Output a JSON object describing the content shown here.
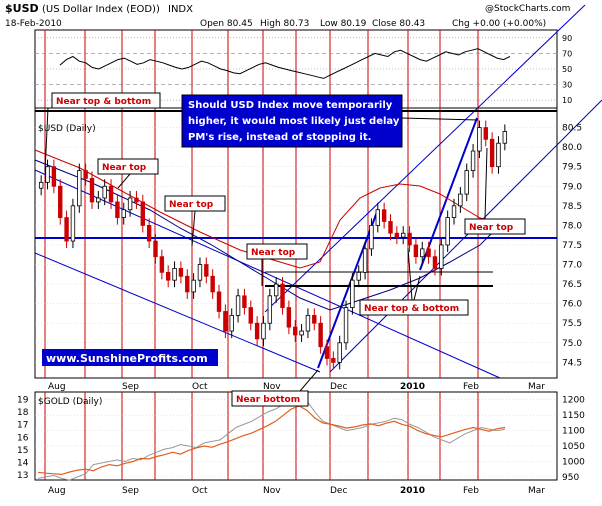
{
  "header": {
    "symbol": "$USD",
    "name": "(US Dollar Index (EOD))",
    "exchange": "INDX",
    "date": "18-Feb-2010",
    "open": "Open 80.45",
    "high": "High 80.73",
    "low": "Low 80.19",
    "close": "Close 80.43",
    "change": "Chg +0.00 (+0.00%)",
    "watermark": "@StockCharts.com"
  },
  "colors": {
    "price_up": "#000000",
    "price_down": "#cc0000",
    "ma_short": "#000080",
    "ma_long": "#cc0000",
    "channel": "#0000cc",
    "horizontal_support": "#0000cc",
    "gold_line": "#999999",
    "usd_overlay": "#e06020",
    "annotation_bg": "#ffffff",
    "annotation_text": "#cc0000",
    "callout_text": "#ffffff",
    "callout_bg": "#0000cc",
    "website_text": "#ffffff",
    "website_bg": "#0000cc"
  },
  "chart_data": [
    {
      "type": "line",
      "panel": "rsi",
      "yticks": [
        "90",
        "70",
        "50",
        "30",
        "10"
      ],
      "ylim": [
        0,
        100
      ],
      "values": [
        55,
        62,
        66,
        60,
        58,
        52,
        50,
        54,
        58,
        62,
        64,
        60,
        56,
        58,
        62,
        60,
        58,
        55,
        52,
        50,
        52,
        56,
        60,
        58,
        54,
        50,
        48,
        45,
        44,
        48,
        52,
        56,
        58,
        55,
        52,
        50,
        48,
        46,
        44,
        42,
        40,
        38,
        42,
        46,
        50,
        54,
        58,
        62,
        66,
        70,
        68,
        66,
        72,
        74,
        70,
        66,
        62,
        60,
        64,
        68,
        72,
        70,
        68,
        72,
        74,
        76,
        72,
        68,
        64,
        62,
        66
      ]
    },
    {
      "type": "line",
      "panel": "price",
      "title": "$USD (Daily)",
      "yticks": [
        "80.5",
        "80.0",
        "79.5",
        "79.0",
        "78.5",
        "78.0",
        "77.5",
        "77.0",
        "76.5",
        "76.0",
        "75.5",
        "75.0",
        "74.5"
      ],
      "ylim": [
        74.1,
        81.0
      ],
      "xticks": [
        "Aug",
        "Sep",
        "Oct",
        "Nov",
        "Dec",
        "2010",
        "Feb",
        "Mar"
      ],
      "values": [
        79.1,
        79.5,
        79.0,
        78.2,
        77.6,
        78.5,
        79.4,
        79.2,
        78.6,
        78.7,
        79.0,
        78.6,
        78.2,
        78.4,
        78.7,
        78.6,
        78.0,
        77.6,
        77.2,
        76.8,
        76.6,
        76.9,
        76.7,
        76.3,
        76.6,
        77.0,
        76.7,
        76.3,
        75.8,
        75.3,
        75.7,
        76.2,
        75.9,
        75.5,
        75.1,
        75.5,
        76.2,
        76.5,
        75.9,
        75.4,
        75.2,
        75.3,
        75.7,
        75.5,
        74.9,
        74.6,
        74.5,
        75.0,
        75.9,
        76.6,
        76.8,
        77.4,
        78.0,
        78.4,
        78.1,
        77.8,
        77.7,
        77.8,
        77.5,
        77.2,
        77.4,
        77.2,
        76.9,
        77.5,
        78.2,
        78.5,
        78.8,
        79.4,
        79.9,
        80.5,
        80.2,
        79.5,
        80.1,
        80.4
      ]
    },
    {
      "type": "line",
      "panel": "gold",
      "title": "$GOLD (Daily)",
      "yticks_left": [
        "19",
        "18",
        "17",
        "16",
        "15",
        "14",
        "13"
      ],
      "yticks_right": [
        "1200",
        "1150",
        "1100",
        "1050",
        "1000",
        "950"
      ],
      "xticks": [
        "Aug",
        "Sep",
        "Oct",
        "Nov",
        "Dec",
        "2010",
        "Feb",
        "Mar"
      ],
      "series": [
        {
          "ylim": [
            940,
            1225
          ],
          "values": [
            945,
            950,
            955,
            945,
            940,
            950,
            960,
            990,
            995,
            1000,
            1005,
            1000,
            1010,
            1005,
            1020,
            1030,
            1040,
            1045,
            1055,
            1050,
            1045,
            1060,
            1065,
            1070,
            1090,
            1110,
            1120,
            1130,
            1145,
            1160,
            1170,
            1185,
            1200,
            1215,
            1195,
            1160,
            1130,
            1120,
            1110,
            1100,
            1105,
            1110,
            1120,
            1125,
            1130,
            1140,
            1135,
            1120,
            1110,
            1095,
            1080,
            1070,
            1060,
            1075,
            1090,
            1100,
            1110,
            1105,
            1100,
            1105
          ]
        },
        {
          "ylim": [
            940,
            1225
          ],
          "values": [
            965,
            962,
            960,
            958,
            966,
            972,
            975,
            970,
            982,
            990,
            986,
            994,
            1000,
            1010,
            1008,
            1016,
            1022,
            1030,
            1024,
            1036,
            1044,
            1050,
            1046,
            1056,
            1064,
            1074,
            1084,
            1092,
            1104,
            1116,
            1130,
            1150,
            1170,
            1180,
            1165,
            1140,
            1125,
            1120,
            1115,
            1108,
            1112,
            1118,
            1122,
            1116,
            1124,
            1130,
            1120,
            1114,
            1100,
            1090,
            1084,
            1080,
            1088,
            1096,
            1104,
            1110,
            1104,
            1098,
            1106,
            1110
          ]
        }
      ]
    }
  ],
  "annotations": {
    "near_top_bottom_1": "Near top & bottom",
    "near_top_1": "Near top",
    "near_top_2": "Near top",
    "near_top_3": "Near top",
    "near_top_4": "Near top",
    "near_top_bottom_2": "Near top & bottom",
    "near_bottom": "Near bottom",
    "callout_line1": "Should USD Index move temporarily",
    "callout_line2": "higher, it would most likely just delay",
    "callout_line3": "PM's rise, instead of stopping it.",
    "website": "www.SunshineProfits.com"
  }
}
